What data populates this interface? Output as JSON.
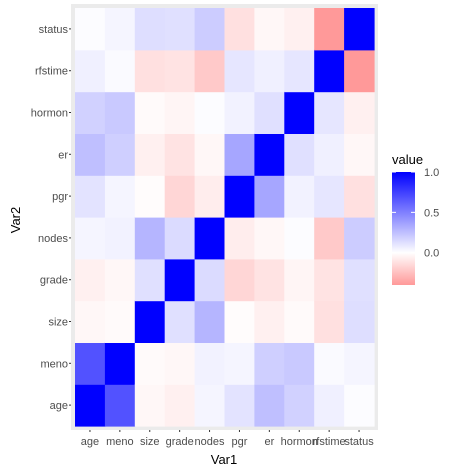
{
  "chart_data": {
    "type": "heatmap",
    "x": [
      "age",
      "meno",
      "size",
      "grade",
      "nodes",
      "pgr",
      "er",
      "hormon",
      "rfstime",
      "status"
    ],
    "y": [
      "age",
      "meno",
      "size",
      "grade",
      "nodes",
      "pgr",
      "er",
      "hormon",
      "rfstime",
      "status"
    ],
    "values": [
      [
        1.0,
        0.68,
        -0.03,
        -0.06,
        0.04,
        0.11,
        0.25,
        0.18,
        0.06,
        0.01
      ],
      [
        0.68,
        1.0,
        -0.02,
        -0.03,
        0.05,
        0.04,
        0.19,
        0.21,
        0.02,
        0.04
      ],
      [
        -0.03,
        -0.02,
        1.0,
        0.12,
        0.29,
        -0.01,
        -0.06,
        -0.02,
        -0.12,
        0.13
      ],
      [
        -0.06,
        -0.03,
        0.12,
        1.0,
        0.14,
        -0.16,
        -0.11,
        -0.04,
        -0.11,
        0.12
      ],
      [
        0.04,
        0.05,
        0.29,
        0.14,
        1.0,
        -0.07,
        -0.03,
        0.01,
        -0.21,
        0.2
      ],
      [
        0.11,
        0.04,
        -0.01,
        -0.16,
        -0.07,
        1.0,
        0.35,
        0.05,
        0.1,
        -0.12
      ],
      [
        0.25,
        0.19,
        -0.06,
        -0.11,
        -0.03,
        0.35,
        1.0,
        0.12,
        0.06,
        -0.03
      ],
      [
        0.18,
        0.21,
        -0.02,
        -0.04,
        0.01,
        0.05,
        0.12,
        1.0,
        0.1,
        -0.06
      ],
      [
        0.06,
        0.02,
        -0.12,
        -0.11,
        -0.21,
        0.1,
        0.06,
        0.1,
        1.0,
        -0.4
      ],
      [
        0.01,
        0.04,
        0.13,
        0.12,
        0.2,
        -0.12,
        -0.03,
        -0.06,
        -0.4,
        1.0
      ]
    ],
    "xlabel": "Var1",
    "ylabel": "Var2",
    "legend": {
      "title": "value",
      "ticks": [
        "1.0",
        "0.5",
        "0.0"
      ],
      "tick_values": [
        1.0,
        0.5,
        0.0
      ],
      "range": [
        -0.4,
        1.0
      ],
      "position": "right"
    },
    "colors": {
      "low": "#ff0000",
      "mid": "#ffffff",
      "high": "#0000ff",
      "panel_border": "#ebebeb"
    },
    "grid": false
  }
}
